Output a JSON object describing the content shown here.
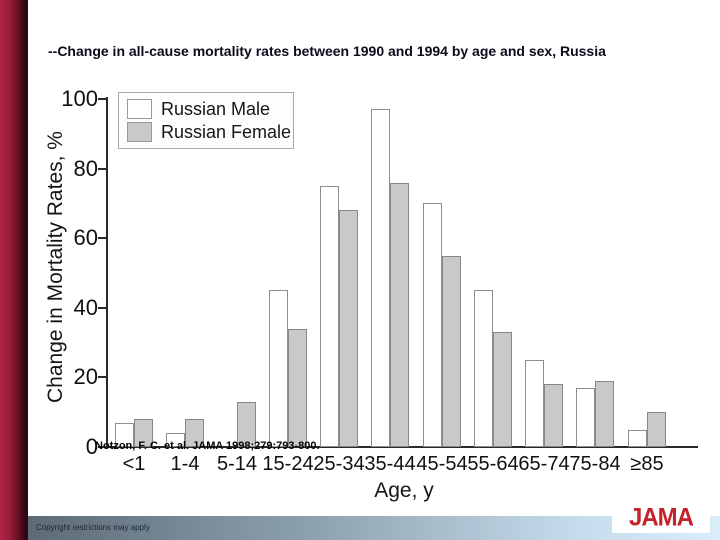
{
  "slide": {
    "title": "--Change in all-cause mortality rates between 1990 and 1994 by age and sex, Russia",
    "citation": "Notzon, F. C. et al. JAMA 1998;279:793-800.",
    "copyright_notice": "Copyright restrictions may apply",
    "logo_text": "JAMA"
  },
  "colors": {
    "sidebar_red": "#9a1c3a",
    "logo_red": "#c5232b",
    "male_bar_fill": "#ffffff",
    "female_bar_fill": "#c9c9c9",
    "bar_border": "#8e8e8e",
    "bottom_bar_gradient_left": "#5c6b76",
    "bottom_bar_gradient_right": "#d9edf9"
  },
  "chart_data": {
    "type": "bar",
    "title": "",
    "categories": [
      "<1",
      "1-4",
      "5-14",
      "15-24",
      "25-34",
      "35-44",
      "45-54",
      "55-64",
      "65-74",
      "75-84",
      "≥85"
    ],
    "series": [
      {
        "name": "Russian Male",
        "values": [
          7,
          4,
          0,
          45,
          75,
          97,
          70,
          45,
          25,
          17,
          5
        ]
      },
      {
        "name": "Russian Female",
        "values": [
          8,
          8,
          13,
          34,
          68,
          76,
          55,
          33,
          18,
          19,
          10
        ]
      }
    ],
    "xlabel": "Age, y",
    "ylabel": "Change in Mortality Rates, %",
    "ylim": [
      0,
      100
    ],
    "yticks": [
      0,
      20,
      40,
      60,
      80,
      100
    ],
    "legend_position": "top-left",
    "grid": false
  }
}
